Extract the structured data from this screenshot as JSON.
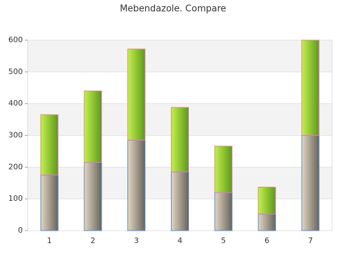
{
  "chart_data": {
    "type": "stacked-bar",
    "title": "Mebendazole. Compare",
    "categories": [
      "1",
      "2",
      "3",
      "4",
      "5",
      "6",
      "7"
    ],
    "series": [
      {
        "color": "#8a8478",
        "gradient": [
          "#e2d6c2",
          "#68645b"
        ],
        "stroke": "#5b8ac4",
        "values": [
          175,
          215,
          285,
          185,
          120,
          52,
          300
        ]
      },
      {
        "color": "#86c42e",
        "gradient": [
          "#c4f04e",
          "#5c9a18"
        ],
        "stroke": "#d884a8",
        "values": [
          190,
          225,
          287,
          203,
          146,
          85,
          300
        ]
      }
    ],
    "ylim": [
      0,
      600
    ],
    "yticks": [
      0,
      100,
      200,
      300,
      400,
      500,
      600
    ],
    "grid": true
  }
}
